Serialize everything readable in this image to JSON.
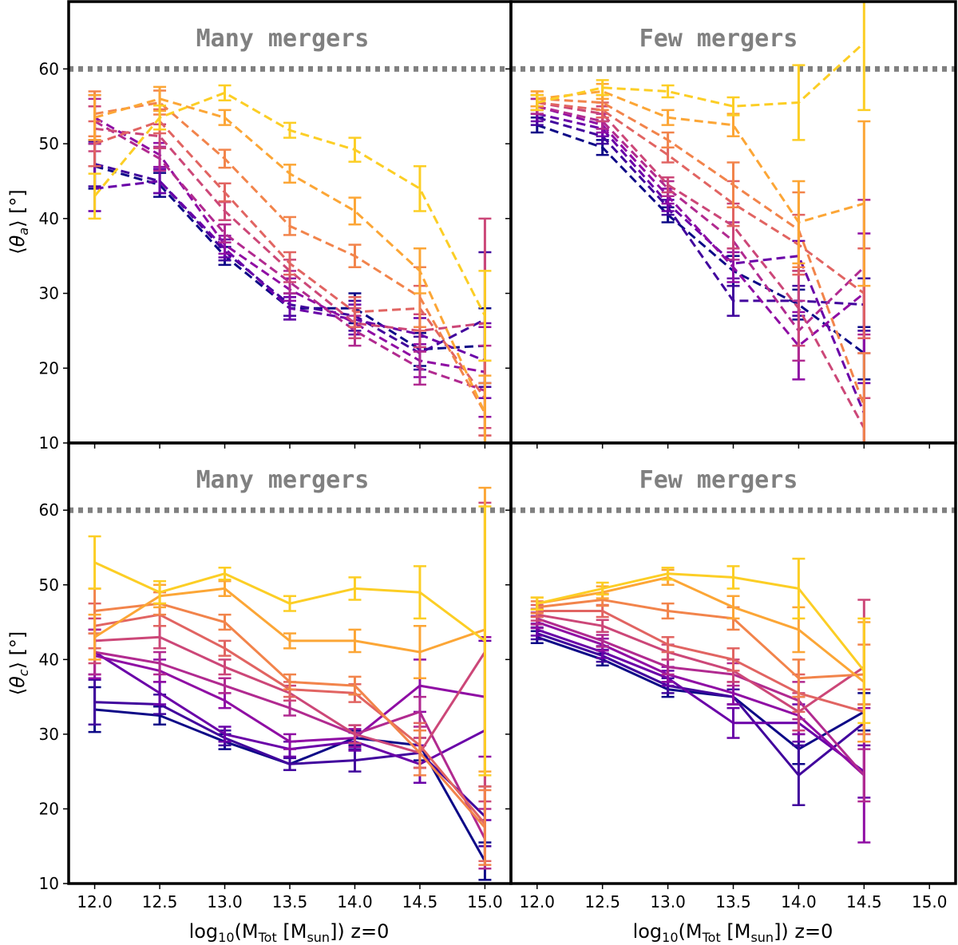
{
  "chart_data": [
    {
      "id": "ta-many",
      "type": "line",
      "title": "Many mergers",
      "ylabel": "⟨θa⟩ [°]",
      "xlabel": "",
      "line_style": "dashed",
      "xlim": [
        11.8,
        15.2
      ],
      "ylim": [
        10,
        69
      ],
      "x": [
        12.0,
        12.5,
        13.0,
        13.5,
        14.0,
        14.5,
        15.0
      ],
      "reference_line": 60,
      "series": [
        {
          "color": "#0d0887",
          "values": [
            47.0,
            44.5,
            35.0,
            28.0,
            28.0,
            22.5,
            23.0
          ],
          "errors": [
            3.0,
            1.6,
            1.2,
            1.5,
            2.0,
            2.2,
            5.0
          ]
        },
        {
          "color": "#41049d",
          "values": [
            47.3,
            45.0,
            35.6,
            28.5,
            27.0,
            22.0,
            26.5
          ],
          "errors": [
            3.0,
            1.6,
            1.2,
            1.5,
            2.0,
            2.2,
            9.0
          ]
        },
        {
          "color": "#6a00a8",
          "values": [
            44.0,
            45.0,
            36.0,
            28.0,
            26.5,
            24.5,
            21.0
          ],
          "errors": [
            3.0,
            1.6,
            1.2,
            1.5,
            2.0,
            2.2,
            5.0
          ]
        },
        {
          "color": "#8f0da4",
          "values": [
            53.5,
            48.5,
            36.5,
            30.5,
            26.0,
            21.0,
            19.5
          ],
          "errors": [
            3.0,
            1.6,
            1.2,
            1.5,
            2.0,
            2.2,
            6.0
          ]
        },
        {
          "color": "#b12a90",
          "values": [
            53.0,
            48.0,
            38.0,
            31.5,
            25.0,
            20.0,
            17.0
          ],
          "errors": [
            3.0,
            1.6,
            1.2,
            1.5,
            2.0,
            2.2,
            6.0
          ]
        },
        {
          "color": "#cc4778",
          "values": [
            52.0,
            51.0,
            41.0,
            33.0,
            26.0,
            25.0,
            26.0
          ],
          "errors": [
            3.0,
            1.6,
            1.2,
            1.5,
            2.0,
            2.2,
            14.0
          ]
        },
        {
          "color": "#e16462",
          "values": [
            50.0,
            53.0,
            43.5,
            34.0,
            27.5,
            28.0,
            16.0
          ],
          "errors": [
            3.0,
            1.6,
            1.2,
            1.5,
            2.0,
            3.0,
            5.0
          ]
        },
        {
          "color": "#f2844b",
          "values": [
            54.0,
            55.5,
            48.0,
            39.0,
            35.0,
            29.5,
            14.0
          ],
          "errors": [
            3.0,
            1.6,
            1.2,
            1.2,
            1.5,
            4.0,
            4.0
          ]
        },
        {
          "color": "#fca636",
          "values": [
            53.5,
            56.0,
            53.5,
            46.0,
            41.0,
            33.0,
            14.0
          ],
          "errors": [
            3.0,
            1.6,
            1.0,
            1.2,
            1.8,
            3.0,
            5.0
          ]
        },
        {
          "color": "#fcce25",
          "values": [
            43.0,
            53.5,
            56.8,
            51.8,
            49.2,
            44.0,
            27.0
          ],
          "errors": [
            3.0,
            1.6,
            1.0,
            1.0,
            1.6,
            3.0,
            6.0
          ]
        }
      ]
    },
    {
      "id": "ta-few",
      "type": "line",
      "title": "Few mergers",
      "ylabel": "",
      "xlabel": "",
      "line_style": "dashed",
      "xlim": [
        11.8,
        15.2
      ],
      "ylim": [
        10,
        69
      ],
      "x": [
        12.0,
        12.5,
        13.0,
        13.5,
        14.0,
        14.5
      ],
      "reference_line": 60,
      "series": [
        {
          "color": "#0d0887",
          "values": [
            52.5,
            49.5,
            40.5,
            33.0,
            28.5,
            22.0
          ],
          "errors": [
            1.0,
            1.0,
            1.0,
            2.0,
            2.0,
            3.5
          ]
        },
        {
          "color": "#41049d",
          "values": [
            53.5,
            51.0,
            41.5,
            29.0,
            29.0,
            28.5
          ],
          "errors": [
            1.0,
            1.0,
            1.0,
            2.0,
            2.0,
            3.5
          ]
        },
        {
          "color": "#6a00a8",
          "values": [
            54.0,
            52.0,
            42.0,
            34.0,
            35.0,
            14.0
          ],
          "errors": [
            1.0,
            1.0,
            1.0,
            2.0,
            2.0,
            4.0
          ]
        },
        {
          "color": "#8f0da4",
          "values": [
            55.0,
            52.5,
            43.0,
            33.5,
            23.0,
            30.0
          ],
          "errors": [
            1.0,
            1.0,
            1.0,
            2.0,
            4.5,
            8.0
          ]
        },
        {
          "color": "#b12a90",
          "values": [
            55.0,
            53.0,
            44.0,
            37.0,
            25.0,
            33.5
          ],
          "errors": [
            1.0,
            1.0,
            1.0,
            2.5,
            4.0,
            9.0
          ]
        },
        {
          "color": "#cc4778",
          "values": [
            55.5,
            54.0,
            44.5,
            39.0,
            28.0,
            12.0
          ],
          "errors": [
            1.0,
            1.0,
            1.0,
            3.0,
            5.0,
            4.0
          ]
        },
        {
          "color": "#e16462",
          "values": [
            55.5,
            54.5,
            48.5,
            42.0,
            36.5,
            30.0
          ],
          "errors": [
            1.0,
            1.0,
            1.0,
            3.0,
            4.0,
            6.0
          ]
        },
        {
          "color": "#f2844b",
          "values": [
            56.0,
            55.5,
            50.5,
            44.5,
            38.5,
            15.0
          ],
          "errors": [
            1.0,
            1.0,
            1.0,
            3.0,
            5.0,
            7.0
          ]
        },
        {
          "color": "#fca636",
          "values": [
            56.0,
            57.0,
            53.5,
            52.5,
            39.5,
            42.0
          ],
          "errors": [
            1.0,
            1.0,
            1.0,
            1.5,
            5.5,
            11.0
          ]
        },
        {
          "color": "#fcce25",
          "values": [
            55.5,
            57.5,
            57.0,
            55.0,
            55.5,
            63.5
          ],
          "errors": [
            1.0,
            1.0,
            0.8,
            1.2,
            5.0,
            9.0
          ]
        }
      ]
    },
    {
      "id": "tc-many",
      "type": "line",
      "title": "Many mergers",
      "ylabel": "⟨θc⟩ [°]",
      "xlabel": "log10(MTot [Msun]) z=0",
      "line_style": "solid",
      "xlim": [
        11.8,
        15.2
      ],
      "ylim": [
        10,
        69
      ],
      "x": [
        12.0,
        12.5,
        13.0,
        13.5,
        14.0,
        14.5,
        15.0
      ],
      "reference_line": 60,
      "series": [
        {
          "color": "#0d0887",
          "values": [
            33.3,
            32.5,
            29.0,
            26.0,
            29.5,
            28.5,
            13.0
          ],
          "errors": [
            3.0,
            1.2,
            1.0,
            0.8,
            1.0,
            2.0,
            2.5
          ]
        },
        {
          "color": "#41049d",
          "values": [
            34.3,
            34.0,
            29.5,
            26.0,
            26.5,
            27.5,
            19.0
          ],
          "errors": [
            3.0,
            1.3,
            1.0,
            0.8,
            1.5,
            2.0,
            4.0
          ]
        },
        {
          "color": "#6a00a8",
          "values": [
            41.0,
            35.5,
            30.0,
            28.0,
            29.0,
            26.0,
            30.5
          ],
          "errors": [
            3.0,
            1.5,
            1.0,
            1.0,
            1.2,
            2.5,
            12.0
          ]
        },
        {
          "color": "#8f0da4",
          "values": [
            40.5,
            38.5,
            34.5,
            29.0,
            29.5,
            36.5,
            35.0
          ],
          "errors": [
            3.0,
            1.5,
            1.0,
            1.0,
            1.2,
            3.5,
            8.0
          ]
        },
        {
          "color": "#b12a90",
          "values": [
            41.0,
            39.5,
            36.5,
            33.5,
            30.0,
            33.0,
            16.0
          ],
          "errors": [
            3.0,
            1.5,
            1.0,
            1.0,
            1.2,
            2.0,
            4.0
          ]
        },
        {
          "color": "#cc4778",
          "values": [
            42.5,
            43.0,
            39.0,
            35.5,
            30.0,
            27.5,
            41.0
          ],
          "errors": [
            3.0,
            1.5,
            1.0,
            1.0,
            1.2,
            2.0,
            20.0
          ]
        },
        {
          "color": "#e16462",
          "values": [
            44.5,
            46.0,
            41.5,
            36.0,
            35.5,
            28.5,
            18.0
          ],
          "errors": [
            3.0,
            1.5,
            1.0,
            1.0,
            1.2,
            3.0,
            5.0
          ]
        },
        {
          "color": "#f2844b",
          "values": [
            46.5,
            47.5,
            45.0,
            37.0,
            36.5,
            27.5,
            17.5
          ],
          "errors": [
            3.0,
            1.5,
            1.0,
            1.0,
            1.2,
            3.0,
            5.0
          ]
        },
        {
          "color": "#fca636",
          "values": [
            43.0,
            48.5,
            49.5,
            42.5,
            42.5,
            41.0,
            44.0
          ],
          "errors": [
            3.0,
            1.5,
            1.0,
            1.0,
            1.5,
            3.5,
            19.0
          ]
        },
        {
          "color": "#fcce25",
          "values": [
            53.0,
            49.0,
            51.5,
            47.5,
            49.5,
            49.0,
            42.5
          ],
          "errors": [
            3.5,
            1.5,
            0.8,
            1.0,
            1.5,
            3.5,
            18.0
          ]
        }
      ]
    },
    {
      "id": "tc-few",
      "type": "line",
      "title": "Few mergers",
      "ylabel": "",
      "xlabel": "log10(MTot [Msun]) z=0",
      "line_style": "solid",
      "xlim": [
        11.8,
        15.2
      ],
      "ylim": [
        10,
        69
      ],
      "x": [
        12.0,
        12.5,
        13.0,
        13.5,
        14.0,
        14.5
      ],
      "reference_line": 60,
      "series": [
        {
          "color": "#0d0887",
          "values": [
            43.0,
            40.0,
            36.0,
            35.0,
            28.0,
            33.0
          ],
          "errors": [
            0.8,
            0.8,
            1.0,
            1.0,
            2.0,
            2.5
          ]
        },
        {
          "color": "#41049d",
          "values": [
            43.5,
            40.5,
            36.5,
            35.0,
            24.5,
            31.5
          ],
          "errors": [
            0.8,
            0.8,
            1.0,
            1.0,
            4.0,
            2.5
          ]
        },
        {
          "color": "#6a00a8",
          "values": [
            44.0,
            41.0,
            37.5,
            31.5,
            31.5,
            25.0
          ],
          "errors": [
            0.8,
            0.8,
            1.0,
            2.0,
            2.5,
            3.5
          ]
        },
        {
          "color": "#8f0da4",
          "values": [
            45.0,
            42.0,
            38.0,
            35.5,
            32.5,
            24.5
          ],
          "errors": [
            0.8,
            0.8,
            1.0,
            1.5,
            2.5,
            9.0
          ]
        },
        {
          "color": "#b12a90",
          "values": [
            45.5,
            42.5,
            39.0,
            38.0,
            34.5,
            24.5
          ],
          "errors": [
            0.8,
            0.8,
            1.0,
            1.5,
            2.5,
            3.5
          ]
        },
        {
          "color": "#cc4778",
          "values": [
            46.0,
            44.5,
            41.0,
            38.5,
            33.0,
            39.0
          ],
          "errors": [
            0.8,
            0.8,
            1.0,
            1.5,
            2.5,
            9.0
          ]
        },
        {
          "color": "#e16462",
          "values": [
            46.5,
            46.5,
            42.0,
            40.0,
            35.5,
            33.0
          ],
          "errors": [
            0.8,
            0.8,
            1.0,
            1.5,
            2.5,
            3.0
          ]
        },
        {
          "color": "#f2844b",
          "values": [
            47.0,
            48.0,
            46.5,
            45.5,
            37.5,
            38.0
          ],
          "errors": [
            0.8,
            0.8,
            1.0,
            1.5,
            2.5,
            4.0
          ]
        },
        {
          "color": "#fca636",
          "values": [
            47.5,
            49.0,
            51.0,
            47.0,
            44.0,
            37.0
          ],
          "errors": [
            0.8,
            0.8,
            1.0,
            1.5,
            3.0,
            8.0
          ]
        },
        {
          "color": "#fcce25",
          "values": [
            47.5,
            49.5,
            51.5,
            51.0,
            49.5,
            38.5
          ],
          "errors": [
            0.8,
            0.8,
            0.8,
            1.5,
            4.0,
            7.0
          ]
        }
      ]
    }
  ],
  "axes": {
    "y_ticks": [
      10,
      20,
      30,
      40,
      50,
      60
    ],
    "y_tick_labels": [
      "10",
      "20",
      "30",
      "40",
      "50",
      "60"
    ],
    "x_ticks": [
      12.0,
      12.5,
      13.0,
      13.5,
      14.0,
      14.5,
      15.0
    ],
    "x_tick_labels": [
      "12.0",
      "12.5",
      "13.0",
      "13.5",
      "14.0",
      "14.5",
      "15.0"
    ],
    "ylabel_top": {
      "open": "⟨",
      "theta": "θ",
      "sub": "a",
      "close": "⟩ [°]"
    },
    "ylabel_bottom": {
      "open": "⟨",
      "theta": "θ",
      "sub": "c",
      "close": "⟩ [°]"
    },
    "xlabel": {
      "pre": "log",
      "sub10": "10",
      "mid": "(M",
      "subtot": "Tot",
      "mid2": " [M",
      "subsun": "sun",
      "post": "]) z=0"
    }
  },
  "colors": {
    "reference_line": "#808080",
    "title": "#808080",
    "frame": "#000000"
  }
}
